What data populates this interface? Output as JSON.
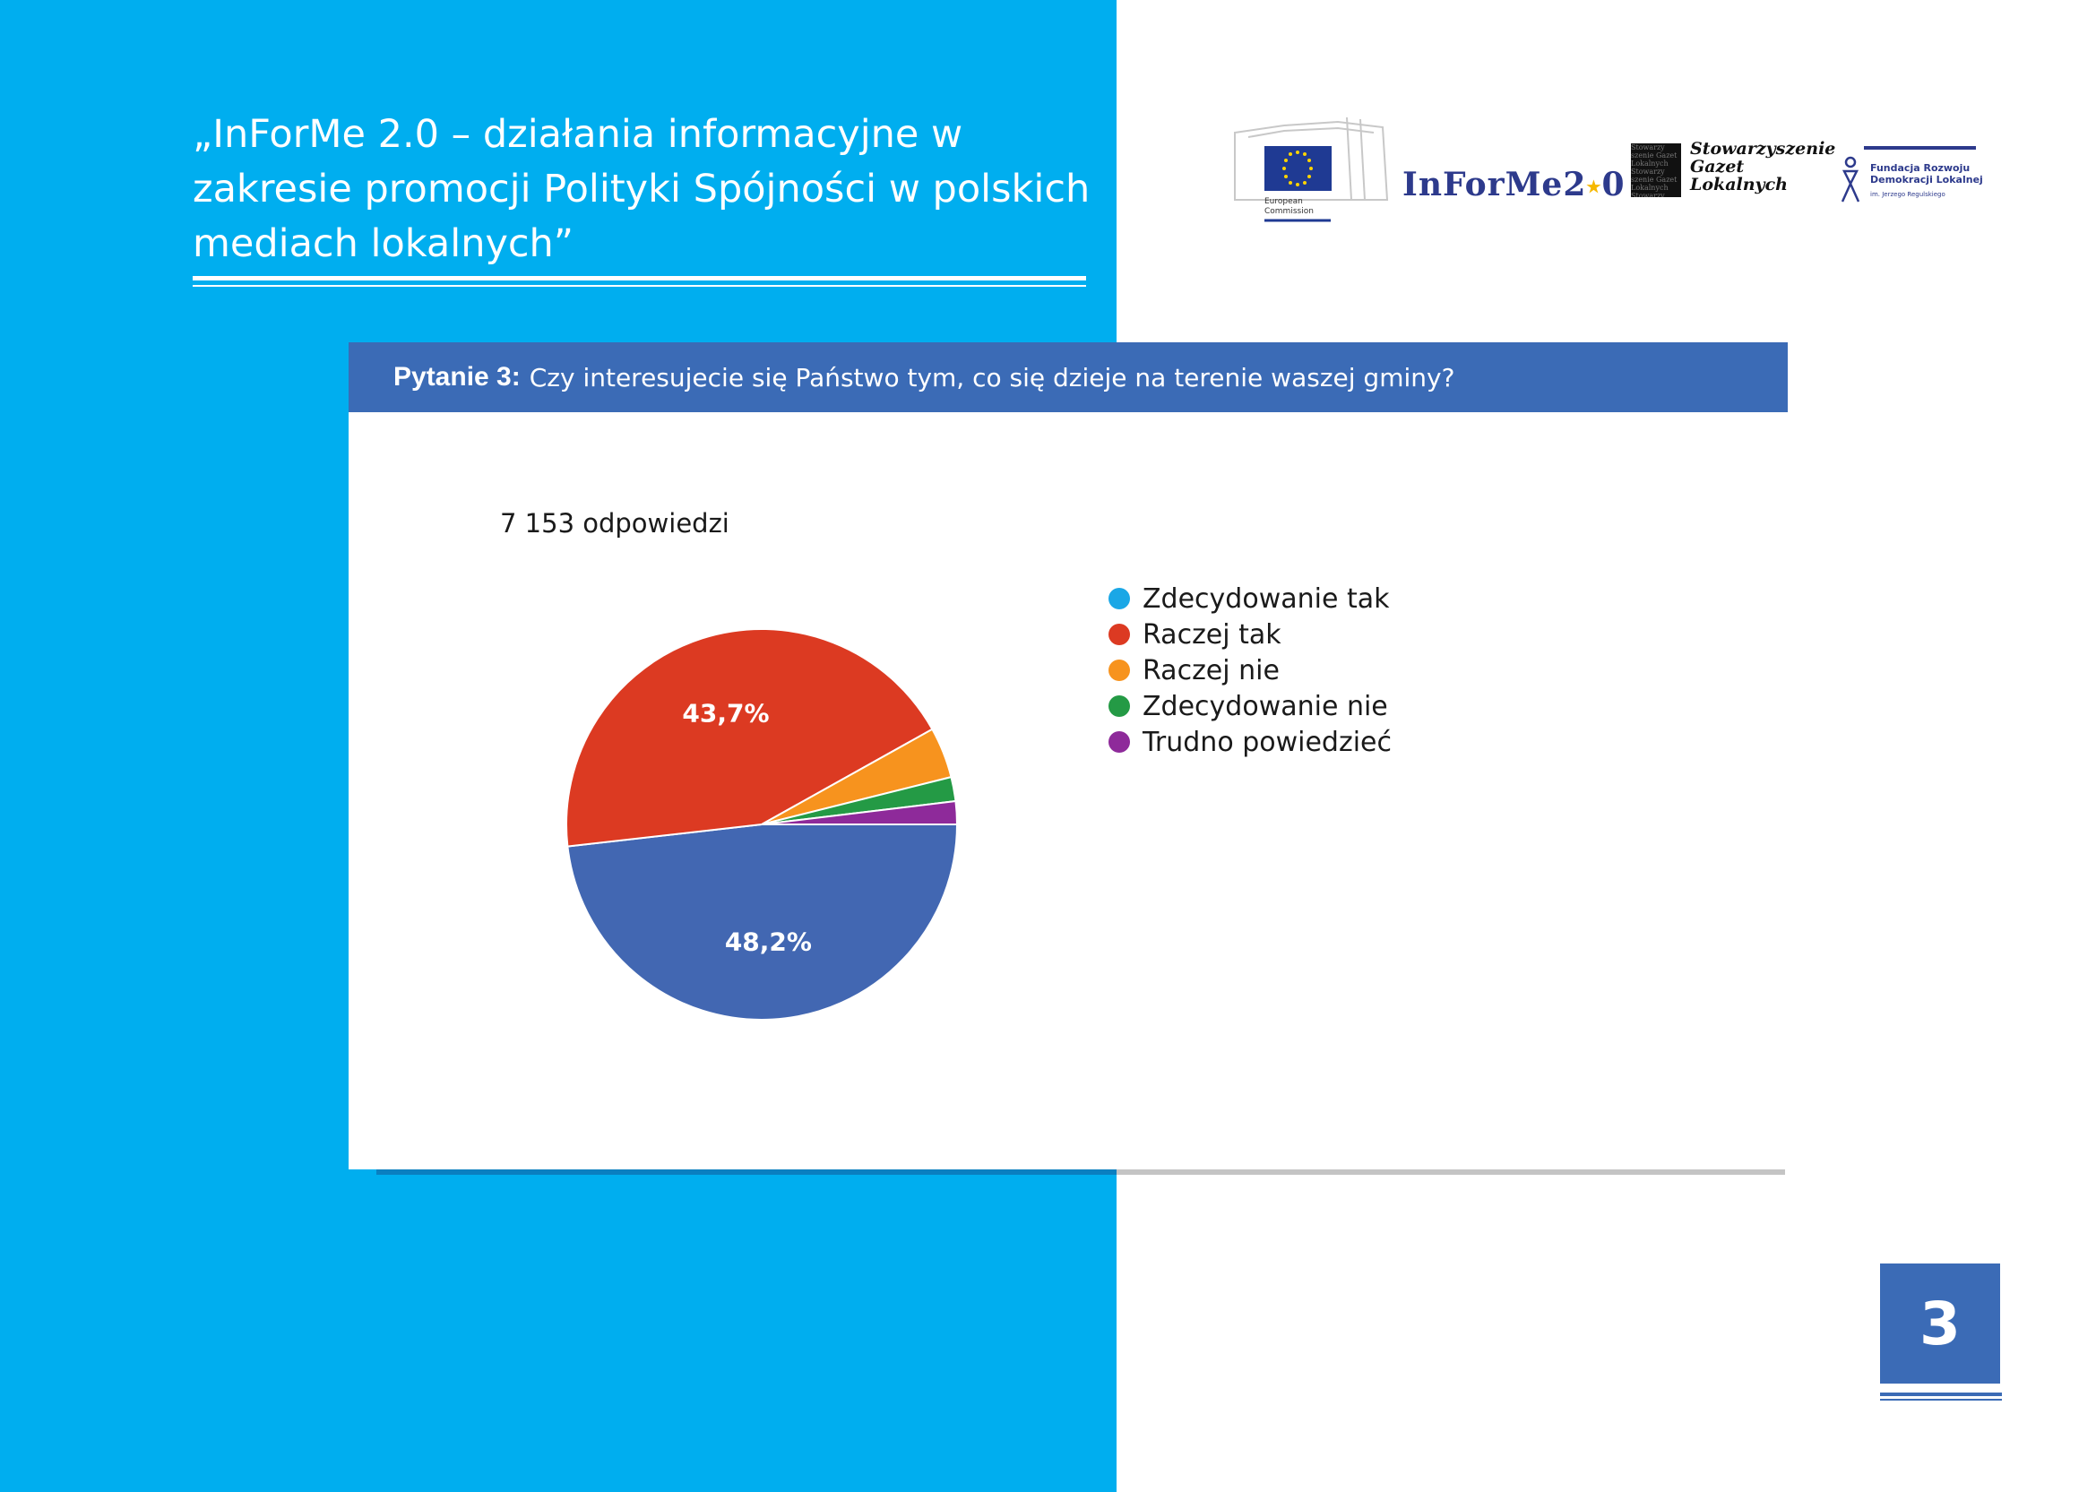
{
  "header": {
    "title": "„InForMe 2.0 – działania informacyjne w zakresie promocji Polityki Spójności w polskich mediach lokalnych”"
  },
  "logos": {
    "ec_caption": "European\nCommission",
    "informe_left": "InForMe2",
    "informe_right": "0",
    "sgl_text": "Stowarzyszenie\nGazet\nLokalnych",
    "frdl_text": "Fundacja Rozwoju\nDemokracji Lokalnej",
    "frdl_sub": "im. Jerzego Regulskiego"
  },
  "question": {
    "label": "Pytanie 3:",
    "text": "Czy interesujecie się Państwo tym, co się dzieje na terenie waszej gminy?"
  },
  "responses": "7 153 odpowiedzi",
  "page_number": "3",
  "colors": {
    "panel_blue": "#00aeef",
    "header_blue": "#3b6bb6"
  },
  "chart_data": {
    "type": "pie",
    "categories": [
      "Zdecydowanie tak",
      "Raczej tak",
      "Raczej nie",
      "Zdecydowanie nie",
      "Trudno powiedzieć"
    ],
    "values": [
      48.2,
      43.7,
      4.2,
      2.0,
      1.9
    ],
    "data_labels": [
      "48,2%",
      "43,7%",
      "",
      "",
      ""
    ],
    "slice_colors": [
      "#4267b2",
      "#dc3a22",
      "#f7931e",
      "#249a45",
      "#8e2a9a"
    ],
    "legend_colors": [
      "#1aa7e6",
      "#dc3a22",
      "#f7931e",
      "#249a45",
      "#8e2a9a"
    ],
    "legend": "right",
    "title": ""
  }
}
